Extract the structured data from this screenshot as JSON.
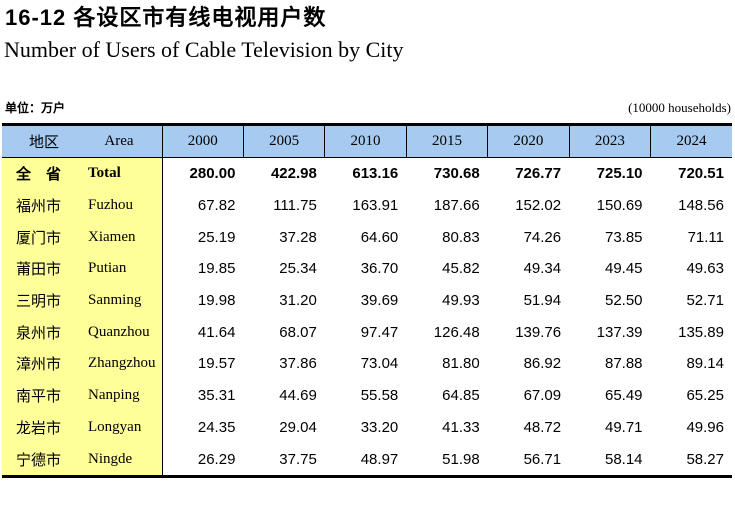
{
  "page": {
    "title_zh": "16-12  各设区市有线电视用户数",
    "title_en": "Number of Users of Cable Television by City",
    "unit_left": "单位：万户",
    "unit_right": "(10000 households)"
  },
  "table": {
    "header": {
      "area_zh": "地区",
      "area_en": "Area",
      "years": [
        "2000",
        "2005",
        "2010",
        "2015",
        "2020",
        "2023",
        "2024"
      ]
    },
    "rows": [
      {
        "zh": "全　省",
        "en": "Total",
        "bold": true,
        "values": [
          "280.00",
          "422.98",
          "613.16",
          "730.68",
          "726.77",
          "725.10",
          "720.51"
        ]
      },
      {
        "zh": "福州市",
        "en": "Fuzhou",
        "bold": false,
        "values": [
          "67.82",
          "111.75",
          "163.91",
          "187.66",
          "152.02",
          "150.69",
          "148.56"
        ]
      },
      {
        "zh": "厦门市",
        "en": "Xiamen",
        "bold": false,
        "values": [
          "25.19",
          "37.28",
          "64.60",
          "80.83",
          "74.26",
          "73.85",
          "71.11"
        ]
      },
      {
        "zh": "莆田市",
        "en": "Putian",
        "bold": false,
        "values": [
          "19.85",
          "25.34",
          "36.70",
          "45.82",
          "49.34",
          "49.45",
          "49.63"
        ]
      },
      {
        "zh": "三明市",
        "en": "Sanming",
        "bold": false,
        "values": [
          "19.98",
          "31.20",
          "39.69",
          "49.93",
          "51.94",
          "52.50",
          "52.71"
        ]
      },
      {
        "zh": "泉州市",
        "en": "Quanzhou",
        "bold": false,
        "values": [
          "41.64",
          "68.07",
          "97.47",
          "126.48",
          "139.76",
          "137.39",
          "135.89"
        ]
      },
      {
        "zh": "漳州市",
        "en": "Zhangzhou",
        "bold": false,
        "values": [
          "19.57",
          "37.86",
          "73.04",
          "81.80",
          "86.92",
          "87.88",
          "89.14"
        ]
      },
      {
        "zh": "南平市",
        "en": "Nanping",
        "bold": false,
        "values": [
          "35.31",
          "44.69",
          "55.58",
          "64.85",
          "67.09",
          "65.49",
          "65.25"
        ]
      },
      {
        "zh": "龙岩市",
        "en": "Longyan",
        "bold": false,
        "values": [
          "24.35",
          "29.04",
          "33.20",
          "41.33",
          "48.72",
          "49.71",
          "49.96"
        ]
      },
      {
        "zh": "宁德市",
        "en": "Ningde",
        "bold": false,
        "values": [
          "26.29",
          "37.75",
          "48.97",
          "51.98",
          "56.71",
          "58.14",
          "58.27"
        ]
      }
    ],
    "colors": {
      "header_bg": "#A6CAF0",
      "area_bg": "#FFFF99",
      "border": "#000000"
    }
  }
}
